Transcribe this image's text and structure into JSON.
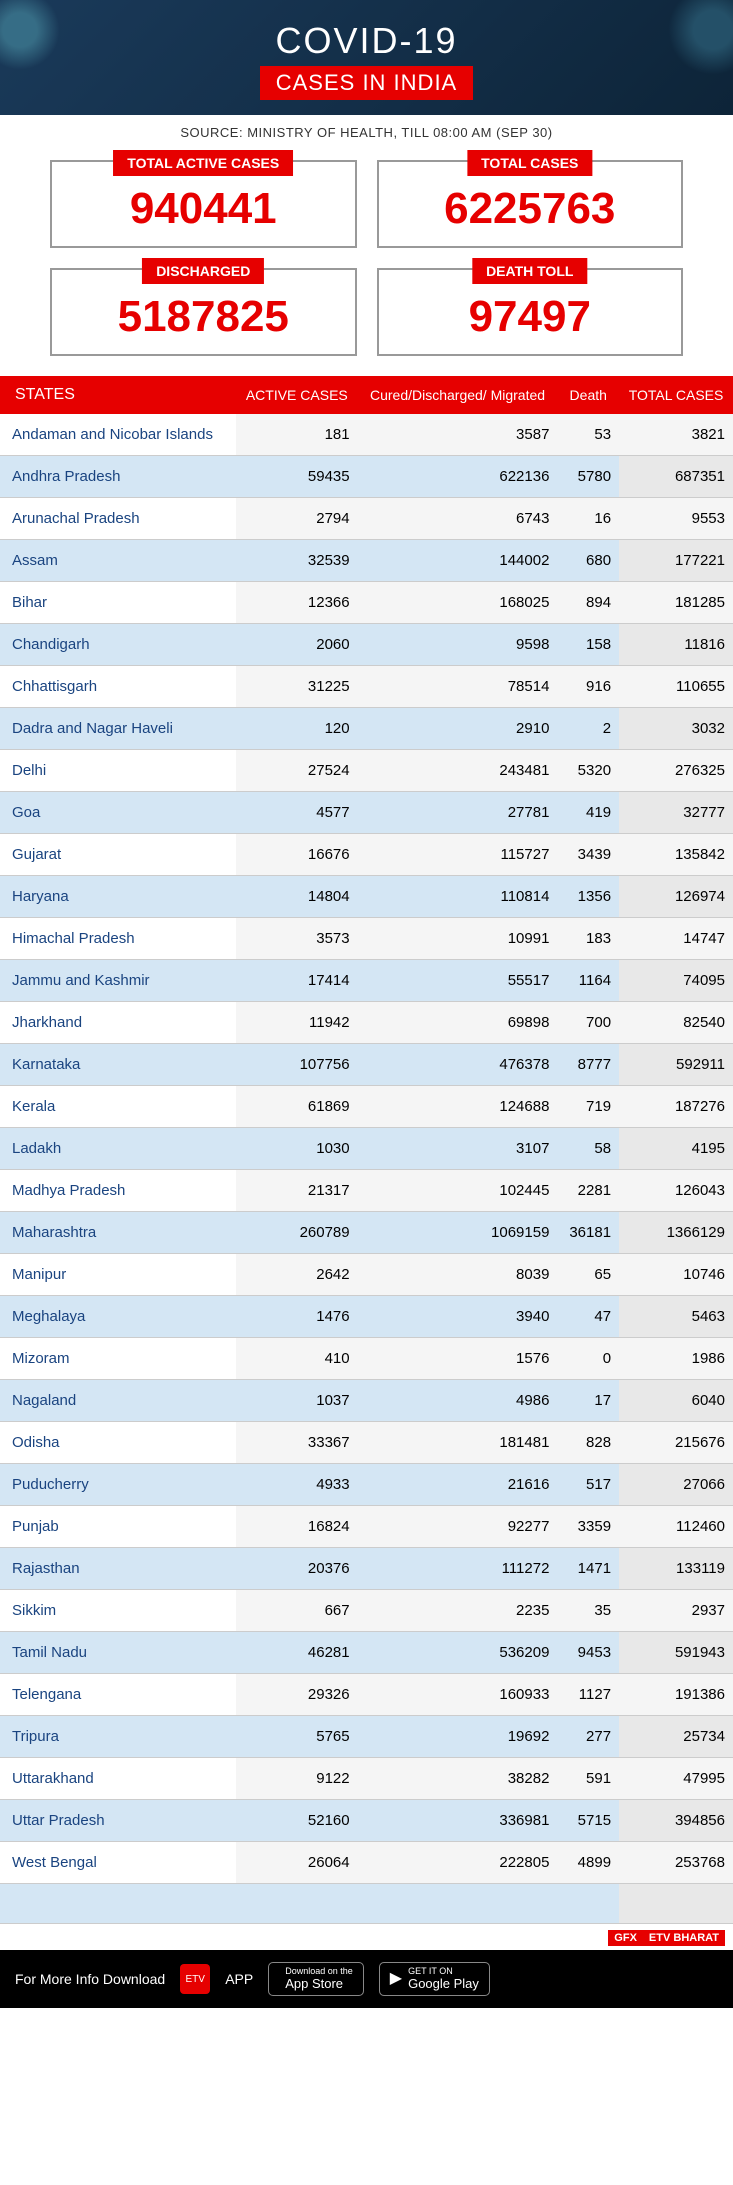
{
  "header": {
    "title": "COVID-19",
    "subtitle": "CASES IN INDIA"
  },
  "source": "SOURCE: MINISTRY OF HEALTH, TILL 08:00 AM (SEP 30)",
  "stats": [
    {
      "label": "TOTAL ACTIVE CASES",
      "value": "940441"
    },
    {
      "label": "TOTAL CASES",
      "value": "6225763"
    },
    {
      "label": "DISCHARGED",
      "value": "5187825"
    },
    {
      "label": "DEATH TOLL",
      "value": "97497"
    }
  ],
  "table": {
    "columns": [
      "STATES",
      "ACTIVE CASES",
      "Cured/Discharged/ Migrated",
      "Death",
      "TOTAL CASES"
    ],
    "rows": [
      [
        "Andaman and Nicobar Islands",
        "181",
        "3587",
        "53",
        "3821"
      ],
      [
        "Andhra Pradesh",
        "59435",
        "622136",
        "5780",
        "687351"
      ],
      [
        "Arunachal Pradesh",
        "2794",
        "6743",
        "16",
        "9553"
      ],
      [
        "Assam",
        "32539",
        "144002",
        "680",
        "177221"
      ],
      [
        "Bihar",
        "12366",
        "168025",
        "894",
        "181285"
      ],
      [
        "Chandigarh",
        "2060",
        "9598",
        "158",
        "11816"
      ],
      [
        "Chhattisgarh",
        "31225",
        "78514",
        "916",
        "110655"
      ],
      [
        "Dadra and Nagar Haveli",
        "120",
        "2910",
        "2",
        "3032"
      ],
      [
        "Delhi",
        "27524",
        "243481",
        "5320",
        "276325"
      ],
      [
        "Goa",
        "4577",
        "27781",
        "419",
        "32777"
      ],
      [
        "Gujarat",
        "16676",
        "115727",
        "3439",
        "135842"
      ],
      [
        "Haryana",
        "14804",
        "110814",
        "1356",
        "126974"
      ],
      [
        "Himachal Pradesh",
        "3573",
        "10991",
        "183",
        "14747"
      ],
      [
        "Jammu and Kashmir",
        "17414",
        "55517",
        "1164",
        "74095"
      ],
      [
        "Jharkhand",
        "11942",
        "69898",
        "700",
        "82540"
      ],
      [
        "Karnataka",
        "107756",
        "476378",
        "8777",
        "592911"
      ],
      [
        "Kerala",
        "61869",
        "124688",
        "719",
        "187276"
      ],
      [
        "Ladakh",
        "1030",
        "3107",
        "58",
        "4195"
      ],
      [
        "Madhya Pradesh",
        "21317",
        "102445",
        "2281",
        "126043"
      ],
      [
        "Maharashtra",
        "260789",
        "1069159",
        "36181",
        "1366129"
      ],
      [
        "Manipur",
        "2642",
        "8039",
        "65",
        "10746"
      ],
      [
        "Meghalaya",
        "1476",
        "3940",
        "47",
        "5463"
      ],
      [
        "Mizoram",
        "410",
        "1576",
        "0",
        "1986"
      ],
      [
        "Nagaland",
        "1037",
        "4986",
        "17",
        "6040"
      ],
      [
        "Odisha",
        "33367",
        "181481",
        "828",
        "215676"
      ],
      [
        "Puducherry",
        "4933",
        "21616",
        "517",
        "27066"
      ],
      [
        "Punjab",
        "16824",
        "92277",
        "3359",
        "112460"
      ],
      [
        "Rajasthan",
        "20376",
        "111272",
        "1471",
        "133119"
      ],
      [
        "Sikkim",
        "667",
        "2235",
        "35",
        "2937"
      ],
      [
        "Tamil Nadu",
        "46281",
        "536209",
        "9453",
        "591943"
      ],
      [
        "Telengana",
        "29326",
        "160933",
        "1127",
        "191386"
      ],
      [
        "Tripura",
        "5765",
        "19692",
        "277",
        "25734"
      ],
      [
        "Uttarakhand",
        "9122",
        "38282",
        "591",
        "47995"
      ],
      [
        "Uttar Pradesh",
        "52160",
        "336981",
        "5715",
        "394856"
      ],
      [
        "West Bengal",
        "26064",
        "222805",
        "4899",
        "253768"
      ]
    ]
  },
  "gfx": {
    "tag1": "GFX",
    "tag2": "ETV BHARAT"
  },
  "footer": {
    "text": "For More Info Download",
    "app": "APP",
    "appstore_small": "Download on the",
    "appstore_big": "App Store",
    "play_small": "GET IT ON",
    "play_big": "Google Play"
  },
  "colors": {
    "accent": "#e60000",
    "header_bg": "#1a3a5a",
    "link": "#1a4480"
  }
}
